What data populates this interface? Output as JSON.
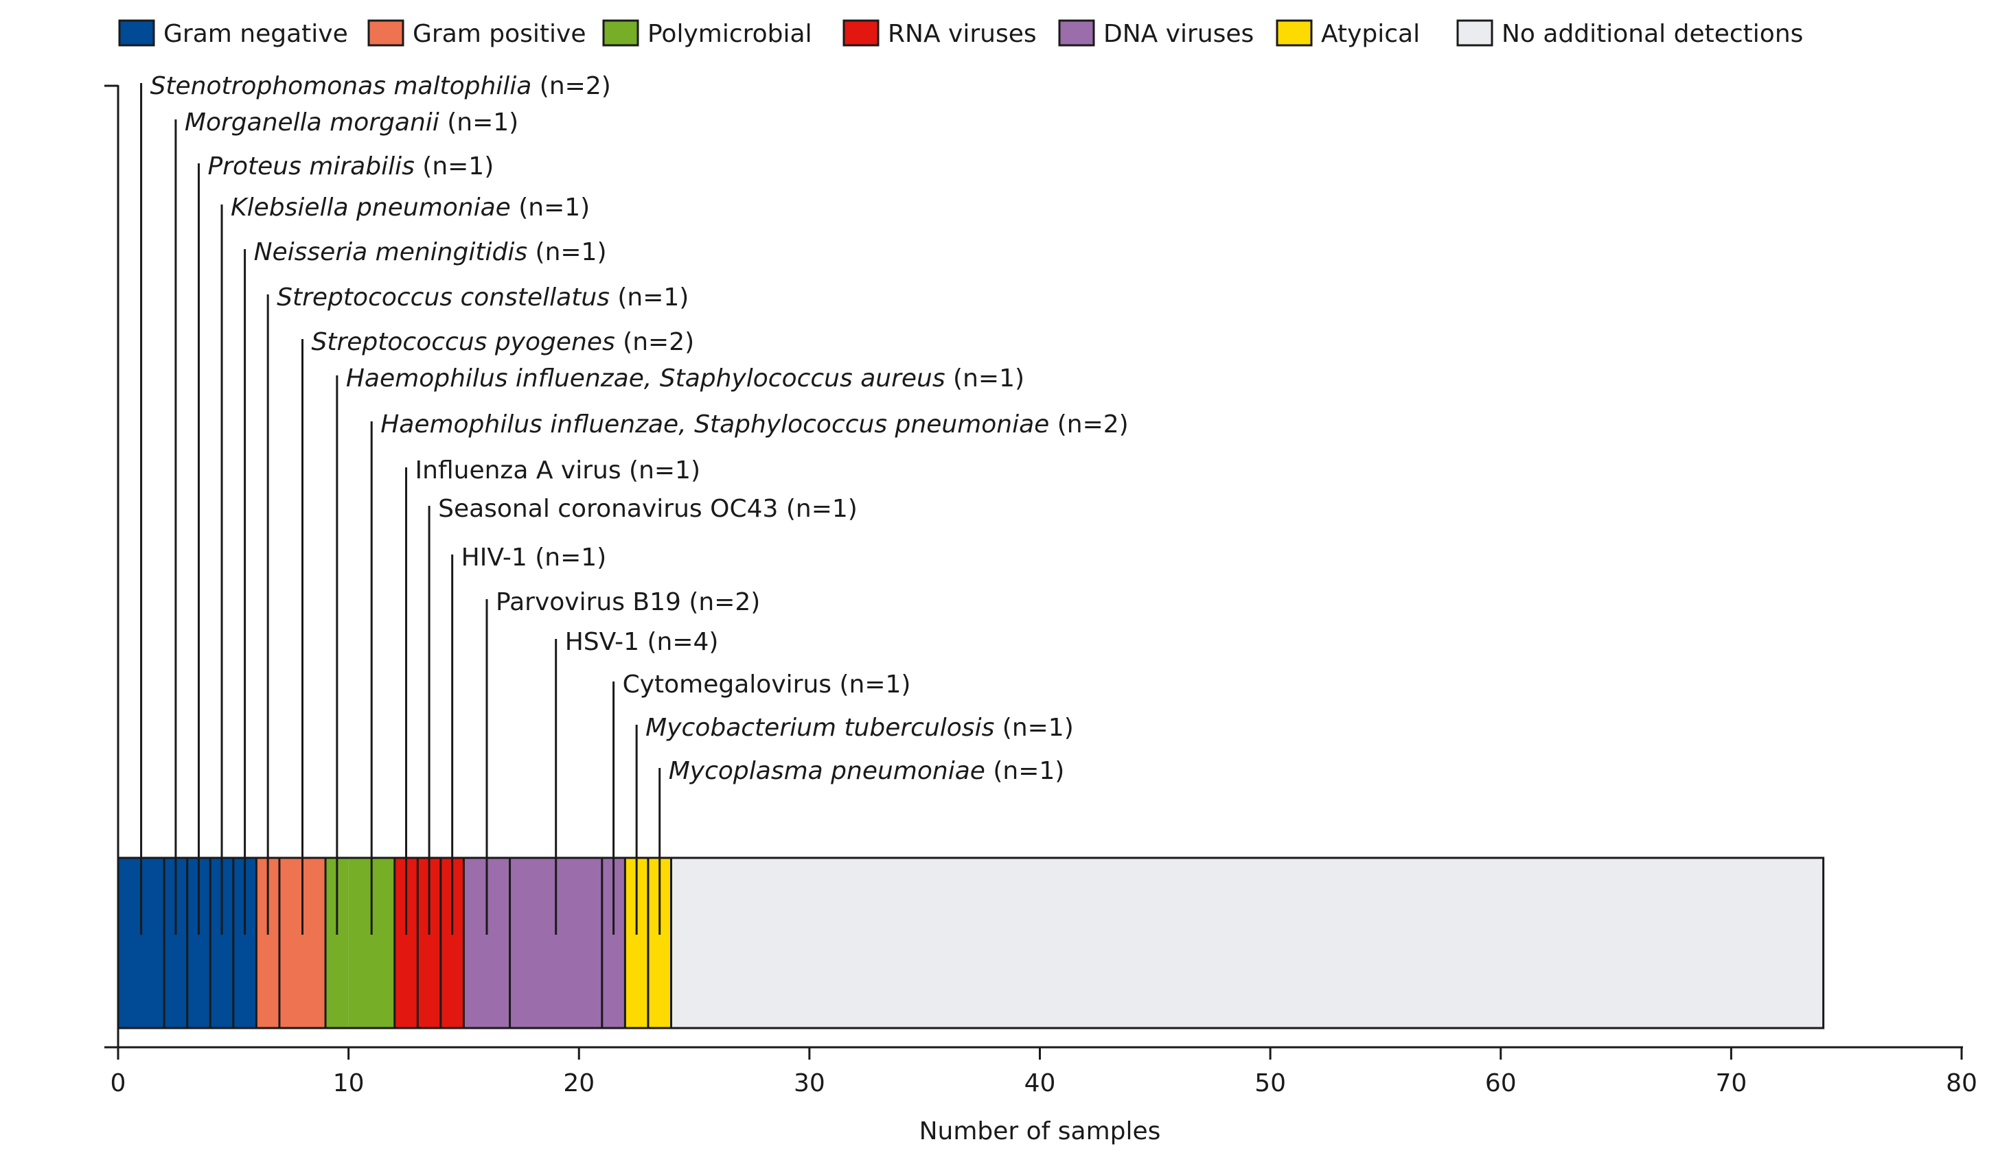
{
  "chart_data": {
    "type": "bar",
    "orientation": "horizontal-stacked",
    "xlabel": "Number of samples",
    "xlim": [
      0,
      80
    ],
    "xticks": [
      0,
      10,
      20,
      30,
      40,
      50,
      60,
      70,
      80
    ],
    "grid": false,
    "legend_position": "top",
    "legend": [
      {
        "name": "Gram negative",
        "color": "#004a96"
      },
      {
        "name": "Gram positive",
        "color": "#ee7350"
      },
      {
        "name": "Polymicrobial",
        "color": "#76ae27"
      },
      {
        "name": "RNA viruses",
        "color": "#e2170f"
      },
      {
        "name": "DNA viruses",
        "color": "#9b6dab"
      },
      {
        "name": "Atypical",
        "color": "#fddb00"
      },
      {
        "name": "No additional detections",
        "color": "#ebecef"
      }
    ],
    "segments": [
      {
        "name": "Stenotrophomonas maltophilia",
        "count_label": "(n=2)",
        "italic": true,
        "group": 0,
        "value": 2
      },
      {
        "name": "Morganella morganii",
        "count_label": "(n=1)",
        "italic": true,
        "group": 0,
        "value": 1
      },
      {
        "name": "Proteus mirabilis",
        "count_label": "(n=1)",
        "italic": true,
        "group": 0,
        "value": 1
      },
      {
        "name": "Klebsiella pneumoniae",
        "count_label": "(n=1)",
        "italic": true,
        "group": 0,
        "value": 1
      },
      {
        "name": "Neisseria meningitidis",
        "count_label": "(n=1)",
        "italic": true,
        "group": 0,
        "value": 1
      },
      {
        "name": "Streptococcus constellatus",
        "count_label": "(n=1)",
        "italic": true,
        "group": 1,
        "value": 1
      },
      {
        "name": "Streptococcus pyogenes",
        "count_label": "(n=2)",
        "italic": true,
        "group": 1,
        "value": 2
      },
      {
        "name": "Haemophilus influenzae, Staphylococcus aureus",
        "count_label": "(n=1)",
        "italic": true,
        "group": 2,
        "value": 1
      },
      {
        "name": "Haemophilus influenzae, Staphylococcus pneumoniae",
        "count_label": "(n=2)",
        "italic": true,
        "group": 2,
        "value": 2
      },
      {
        "name": "Influenza A virus",
        "count_label": "(n=1)",
        "italic": false,
        "group": 3,
        "value": 1
      },
      {
        "name": "Seasonal coronavirus OC43",
        "count_label": "(n=1)",
        "italic": false,
        "group": 3,
        "value": 1
      },
      {
        "name": "HIV-1",
        "count_label": "(n=1)",
        "italic": false,
        "group": 3,
        "value": 1
      },
      {
        "name": "Parvovirus B19",
        "count_label": "(n=2)",
        "italic": false,
        "group": 4,
        "value": 2
      },
      {
        "name": "HSV-1",
        "count_label": "(n=4)",
        "italic": false,
        "group": 4,
        "value": 4
      },
      {
        "name": "Cytomegalovirus",
        "count_label": "(n=1)",
        "italic": false,
        "group": 4,
        "value": 1
      },
      {
        "name": "Mycobacterium tuberculosis",
        "count_label": "(n=1)",
        "italic": true,
        "group": 5,
        "value": 1
      },
      {
        "name": "Mycoplasma pneumoniae",
        "count_label": "(n=1)",
        "italic": true,
        "group": 5,
        "value": 1
      }
    ],
    "remainder": {
      "group": 6,
      "value": 50
    }
  }
}
